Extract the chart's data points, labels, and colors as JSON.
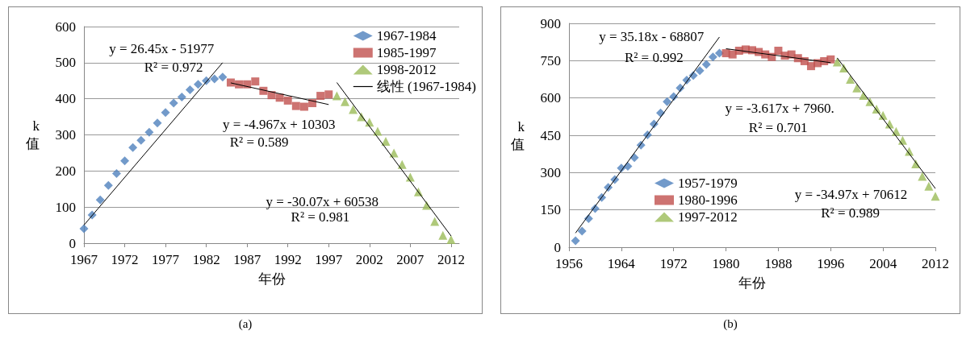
{
  "chart_data": [
    {
      "type": "scatter",
      "title": "(a)",
      "xlabel": "年份",
      "ylabel": "k值",
      "xlim": [
        1967,
        2013
      ],
      "xticks": [
        1967,
        1972,
        1977,
        1982,
        1987,
        1992,
        1997,
        2002,
        2007,
        2012
      ],
      "ylim": [
        0,
        600
      ],
      "yticks": [
        0,
        100,
        200,
        300,
        400,
        500,
        600
      ],
      "grid": "y",
      "legend": "top right",
      "series": [
        {
          "name": "1967-1984",
          "marker": "diamond",
          "color": "#4f81bd",
          "x": [
            1967,
            1968,
            1969,
            1970,
            1971,
            1972,
            1973,
            1974,
            1975,
            1976,
            1977,
            1978,
            1979,
            1980,
            1981,
            1982,
            1983,
            1984
          ],
          "values": [
            40,
            78,
            120,
            160,
            193,
            228,
            265,
            285,
            307,
            333,
            362,
            388,
            405,
            425,
            440,
            450,
            455,
            460
          ]
        },
        {
          "name": "1985-1997",
          "marker": "square",
          "color": "#c0504d",
          "x": [
            1985,
            1986,
            1987,
            1988,
            1989,
            1990,
            1991,
            1992,
            1993,
            1994,
            1995,
            1996,
            1997
          ],
          "values": [
            445,
            440,
            440,
            448,
            422,
            410,
            403,
            395,
            380,
            378,
            388,
            408,
            412
          ]
        },
        {
          "name": "1998-2012",
          "marker": "triangle",
          "color": "#9bbb59",
          "x": [
            1998,
            1999,
            2000,
            2001,
            2002,
            2003,
            2004,
            2005,
            2006,
            2007,
            2008,
            2009,
            2010,
            2011,
            2012
          ],
          "values": [
            408,
            392,
            370,
            350,
            335,
            310,
            282,
            250,
            218,
            183,
            142,
            105,
            60,
            22,
            10
          ]
        },
        {
          "name": "线性 (1967-1984)",
          "type": "line",
          "marker": "none",
          "line_style": "solid",
          "color": "#000000",
          "x": [
            1967,
            1984
          ],
          "values": [
            50,
            500
          ]
        },
        {
          "type": "line",
          "marker": "none",
          "line_style": "solid",
          "color": "#000000",
          "x": [
            1985,
            1997
          ],
          "values": [
            444,
            384
          ]
        },
        {
          "type": "line",
          "marker": "none",
          "line_style": "solid",
          "color": "#000000",
          "x": [
            1998,
            2012
          ],
          "values": [
            445,
            20
          ]
        }
      ],
      "annotations": [
        "y = 26.45x - 51977",
        "R² = 0.972",
        "y = -4.967x + 10303",
        "R² = 0.589",
        "y = -30.07x + 60538",
        "R² = 0.981"
      ]
    },
    {
      "type": "scatter",
      "title": "(b)",
      "xlabel": "年份",
      "ylabel": "k值",
      "xlim": [
        1956,
        2012
      ],
      "xticks": [
        1956,
        1964,
        1972,
        1980,
        1988,
        1996,
        2004,
        2012
      ],
      "ylim": [
        0,
        900
      ],
      "yticks": [
        0,
        150,
        300,
        450,
        600,
        750,
        900
      ],
      "grid": "y",
      "legend": "bottom left",
      "series": [
        {
          "name": "1957-1979",
          "marker": "diamond",
          "color": "#4f81bd",
          "x": [
            1957,
            1958,
            1959,
            1960,
            1961,
            1962,
            1963,
            1964,
            1965,
            1966,
            1967,
            1968,
            1969,
            1970,
            1971,
            1972,
            1973,
            1974,
            1975,
            1976,
            1977,
            1978,
            1979
          ],
          "values": [
            26,
            65,
            115,
            155,
            200,
            240,
            272,
            318,
            325,
            360,
            410,
            452,
            495,
            540,
            585,
            605,
            640,
            672,
            690,
            710,
            735,
            765,
            780
          ]
        },
        {
          "name": "1980-1996",
          "marker": "square",
          "color": "#c0504d",
          "x": [
            1980,
            1981,
            1982,
            1983,
            1984,
            1985,
            1986,
            1987,
            1988,
            1989,
            1990,
            1991,
            1992,
            1993,
            1994,
            1995,
            1996
          ],
          "values": [
            780,
            775,
            790,
            795,
            792,
            785,
            775,
            765,
            790,
            770,
            775,
            760,
            748,
            728,
            740,
            748,
            755
          ]
        },
        {
          "name": "1997-2012",
          "marker": "triangle",
          "color": "#9bbb59",
          "x": [
            1997,
            1998,
            1999,
            2000,
            2001,
            2002,
            2003,
            2004,
            2005,
            2006,
            2007,
            2008,
            2009,
            2010,
            2011,
            2012
          ],
          "values": [
            745,
            720,
            675,
            640,
            610,
            585,
            555,
            530,
            495,
            465,
            430,
            385,
            335,
            285,
            245,
            205
          ]
        },
        {
          "type": "line",
          "marker": "none",
          "line_style": "solid",
          "color": "#000000",
          "x": [
            1957,
            1979
          ],
          "values": [
            57,
            845
          ]
        },
        {
          "type": "line",
          "marker": "none",
          "line_style": "solid",
          "color": "#000000",
          "x": [
            1980,
            1996
          ],
          "values": [
            798,
            742
          ]
        },
        {
          "type": "line",
          "marker": "none",
          "line_style": "solid",
          "color": "#000000",
          "x": [
            1997,
            2012
          ],
          "values": [
            761,
            236
          ]
        }
      ],
      "annotations": [
        "y = 35.18x - 68807",
        "R² = 0.992",
        "y = -3.617x + 7960.",
        "R² = 0.701",
        "y = -34.97x + 70612",
        "R² = 0.989"
      ]
    }
  ]
}
